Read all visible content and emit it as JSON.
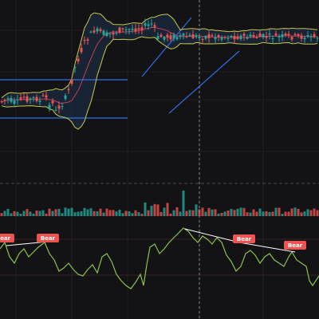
{
  "chart_data": [
    {
      "panel": "price",
      "type": "candlestick",
      "overlays": [
        "bollinger-bands",
        "moving-average"
      ],
      "colors": {
        "up": "#26a69a",
        "down": "#ef5350",
        "band": "#c8c84a",
        "band_fill": "#1b2b3d",
        "ma": "#c0405a",
        "channel": "#2f6ee8",
        "crosshair": "#8a8a8a",
        "grid": "#1f1f24"
      }
    },
    {
      "panel": "volume",
      "type": "bar",
      "colors": {
        "up": "#26a69a",
        "down": "#ef5350"
      }
    },
    {
      "panel": "oscillator",
      "type": "line",
      "annotations": [
        {
          "label": "Bear"
        },
        {
          "label": "Bear"
        },
        {
          "label": "Bear"
        },
        {
          "label": "Bear"
        }
      ],
      "colors": {
        "line": "#8bc34a",
        "divergence": "#ffffff",
        "badge": "#ef5350",
        "level": "#3a2228"
      }
    }
  ]
}
